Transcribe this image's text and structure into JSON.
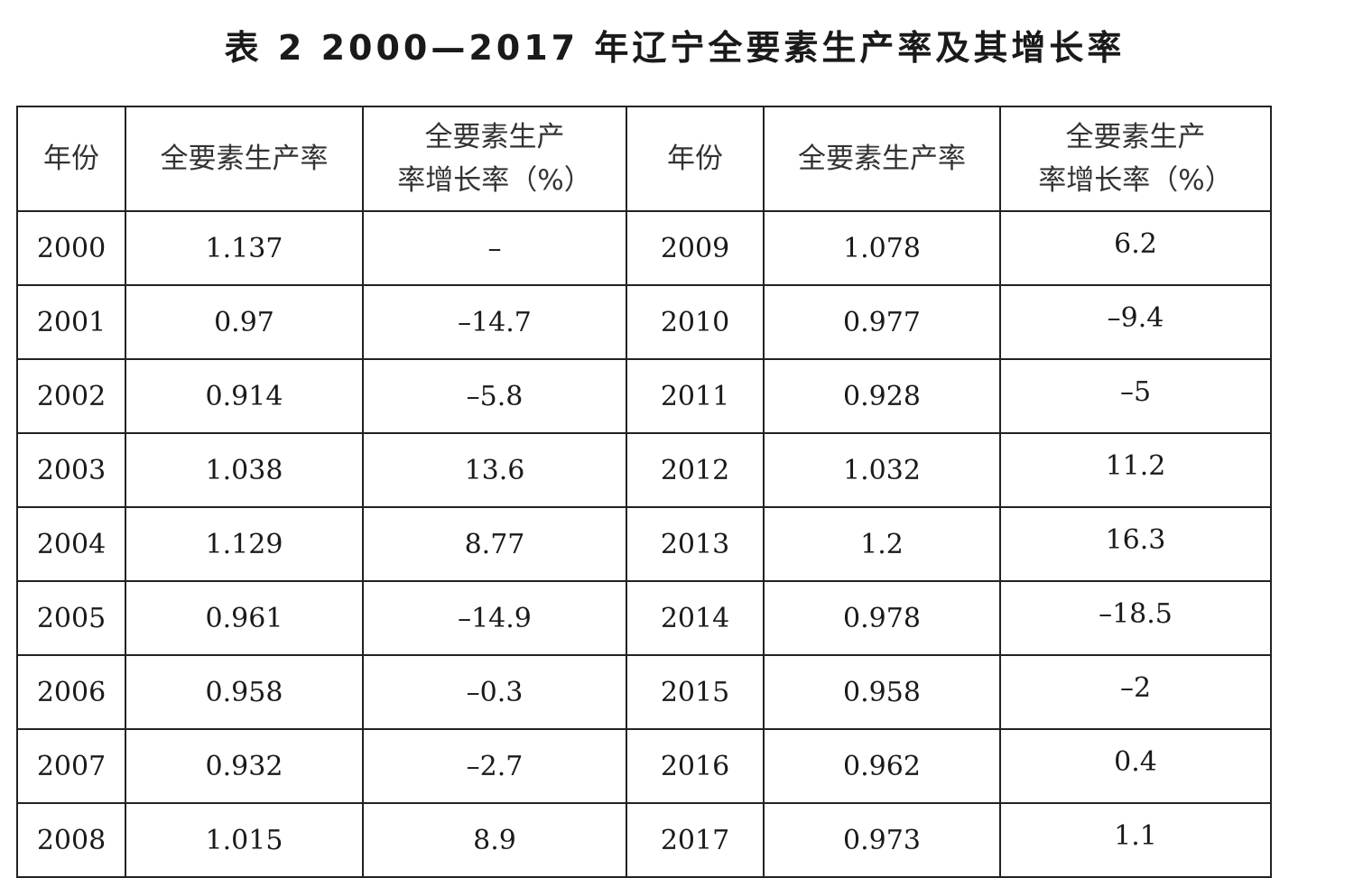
{
  "title": "表 2  2000—2017 年辽宁全要素生产率及其增长率",
  "headers": {
    "year": "年份",
    "tfp": "全要素生产率",
    "growth_line1": "全要素生产",
    "growth_line2": "率增长率（%）"
  },
  "rows": [
    {
      "y1": "2000",
      "t1": "1.137",
      "g1": "–",
      "y2": "2009",
      "t2": "1.078",
      "g2": "6.2"
    },
    {
      "y1": "2001",
      "t1": "0.97",
      "g1": "–14.7",
      "y2": "2010",
      "t2": "0.977",
      "g2": "–9.4"
    },
    {
      "y1": "2002",
      "t1": "0.914",
      "g1": "–5.8",
      "y2": "2011",
      "t2": "0.928",
      "g2": "–5"
    },
    {
      "y1": "2003",
      "t1": "1.038",
      "g1": "13.6",
      "y2": "2012",
      "t2": "1.032",
      "g2": "11.2"
    },
    {
      "y1": "2004",
      "t1": "1.129",
      "g1": "8.77",
      "y2": "2013",
      "t2": "1.2",
      "g2": "16.3"
    },
    {
      "y1": "2005",
      "t1": "0.961",
      "g1": "–14.9",
      "y2": "2014",
      "t2": "0.978",
      "g2": "–18.5"
    },
    {
      "y1": "2006",
      "t1": "0.958",
      "g1": "–0.3",
      "y2": "2015",
      "t2": "0.958",
      "g2": "–2"
    },
    {
      "y1": "2007",
      "t1": "0.932",
      "g1": "–2.7",
      "y2": "2016",
      "t2": "0.962",
      "g2": "0.4"
    },
    {
      "y1": "2008",
      "t1": "1.015",
      "g1": "8.9",
      "y2": "2017",
      "t2": "0.973",
      "g2": "1.1"
    }
  ]
}
